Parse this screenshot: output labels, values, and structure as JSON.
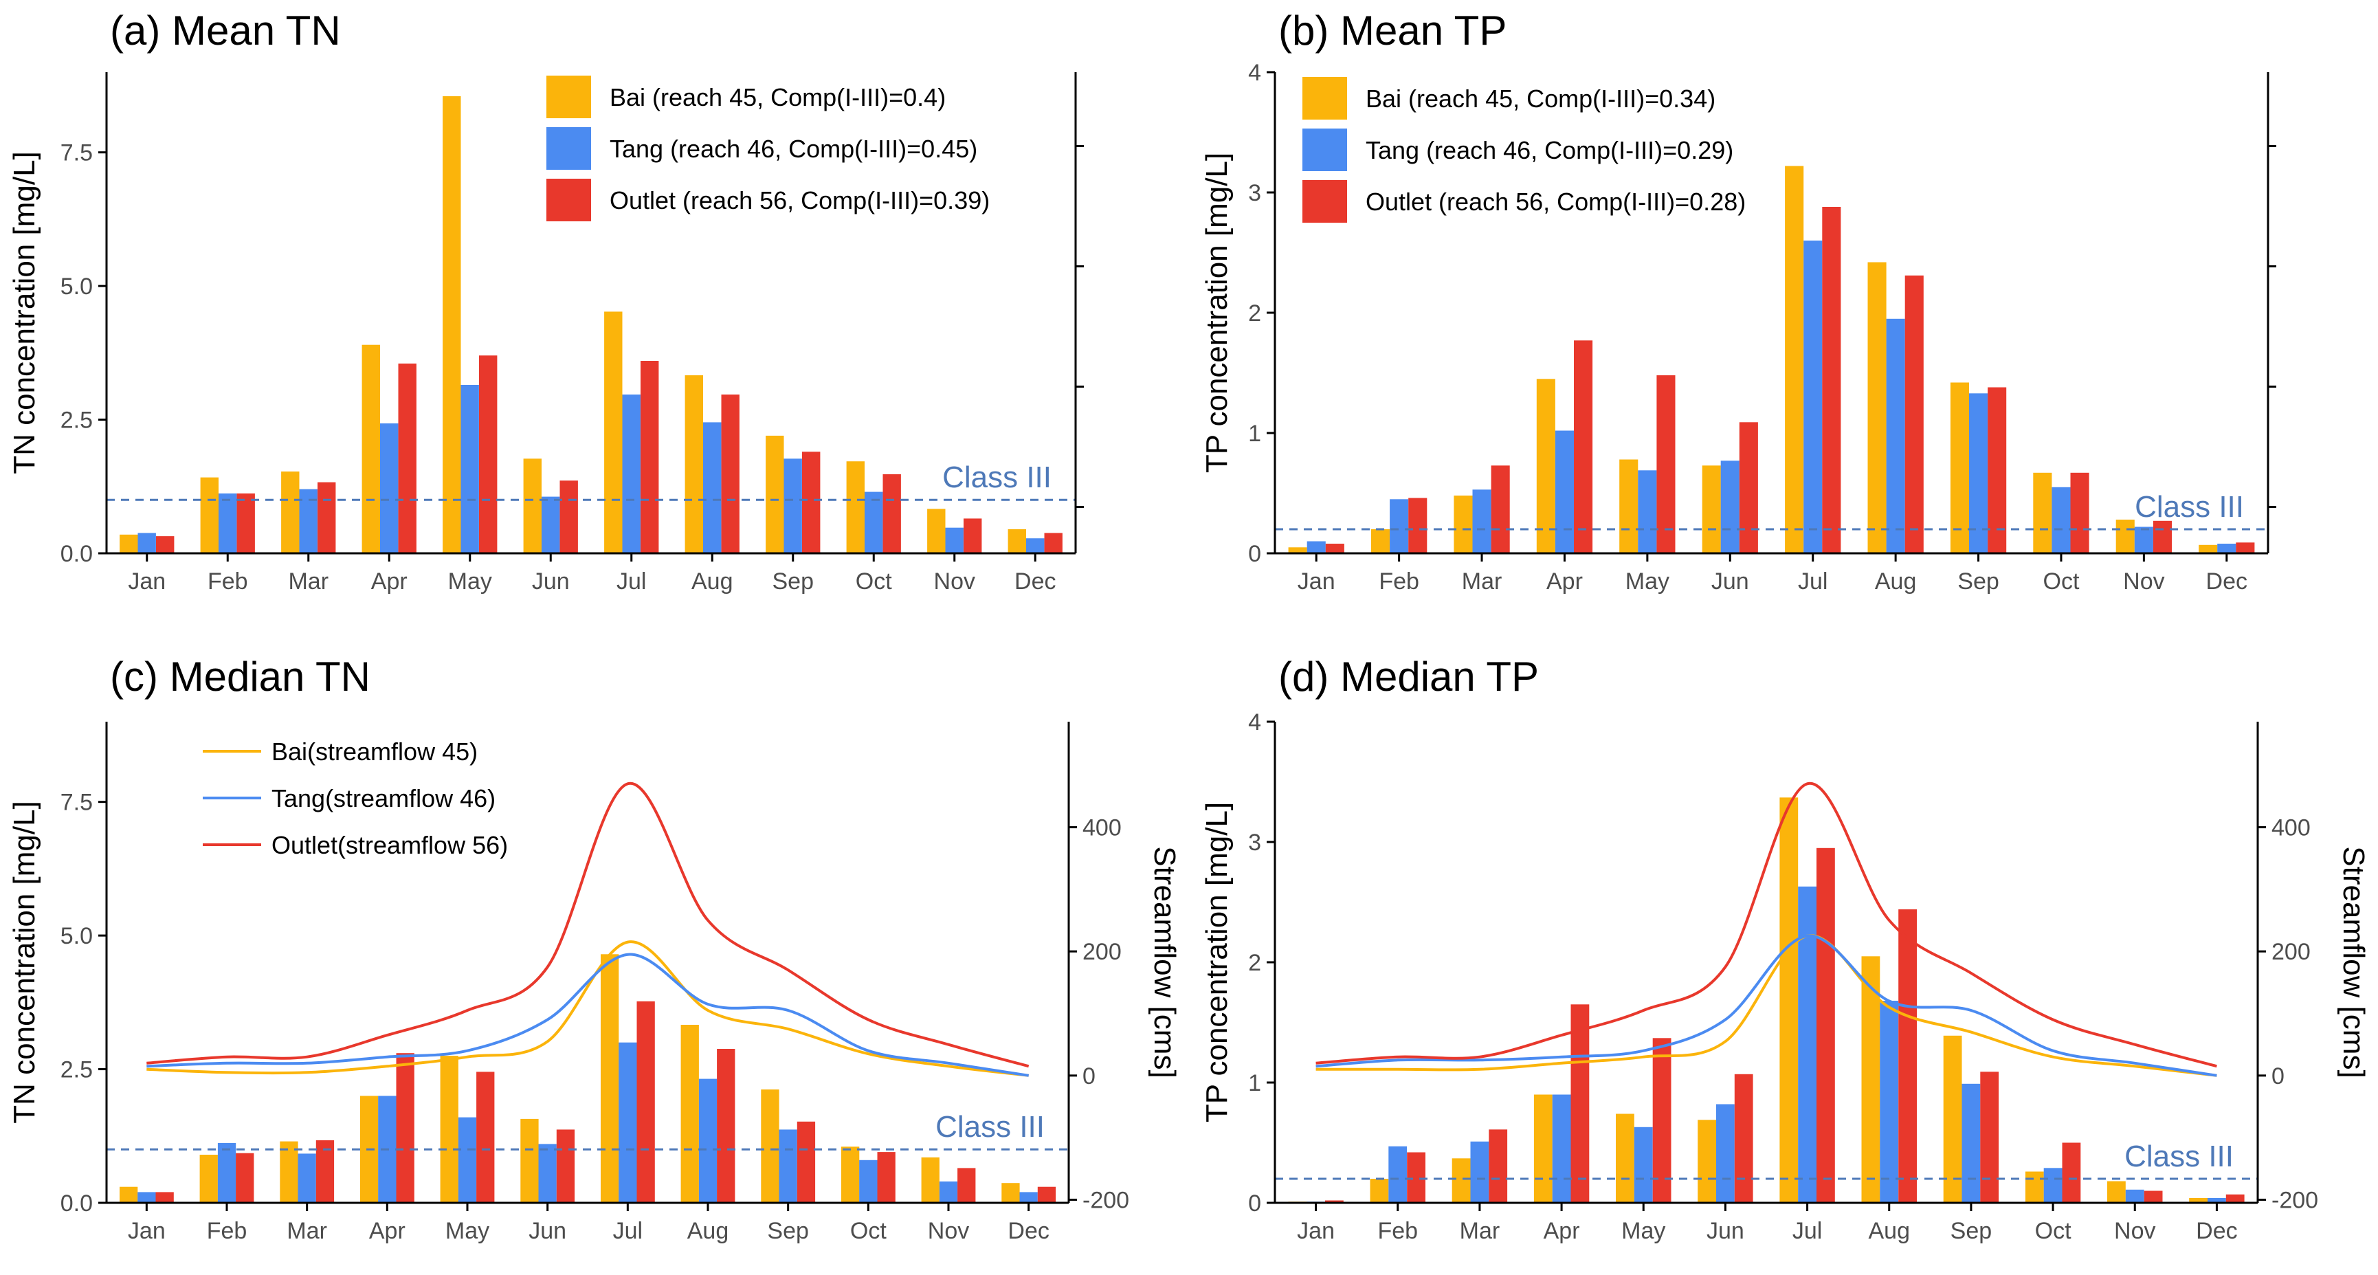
{
  "colors": {
    "bai": "#FBB40B",
    "tang": "#4B8BF1",
    "outlet": "#E8382C",
    "classline": "#4E79B8",
    "axis": "#000000",
    "tick_text": "#4d4d4d"
  },
  "months": [
    "Jan",
    "Feb",
    "Mar",
    "Apr",
    "May",
    "Jun",
    "Jul",
    "Aug",
    "Sep",
    "Oct",
    "Nov",
    "Dec"
  ],
  "chart_data": [
    {
      "id": "a",
      "type": "bar",
      "title": "(a) Mean TN",
      "ylabel": "TN concentration [mg/L]",
      "ylim": [
        0,
        9
      ],
      "yticks": [
        0,
        2.5,
        5,
        7.5
      ],
      "ytick_labels": [
        "0.0",
        "2.5",
        "5.0",
        "7.5"
      ],
      "class_line": {
        "value": 1.0,
        "label": "Class III"
      },
      "series": [
        {
          "name": "Bai (reach 45, Comp(I-III)=0.4)",
          "color": "#FBB40B",
          "values": [
            0.35,
            1.42,
            1.53,
            3.9,
            8.55,
            1.77,
            4.52,
            3.33,
            2.2,
            1.72,
            0.83,
            0.45
          ]
        },
        {
          "name": "Tang (reach 46, Comp(I-III)=0.45)",
          "color": "#4B8BF1",
          "values": [
            0.38,
            1.12,
            1.2,
            2.43,
            3.15,
            1.06,
            2.97,
            2.45,
            1.77,
            1.15,
            0.48,
            0.28
          ]
        },
        {
          "name": "Outlet (reach 56, Comp(I-III)=0.39)",
          "color": "#E8382C",
          "values": [
            0.32,
            1.12,
            1.33,
            3.55,
            3.7,
            1.36,
            3.6,
            2.97,
            1.9,
            1.48,
            0.65,
            0.38
          ]
        }
      ],
      "right_axis_ticks": 4
    },
    {
      "id": "b",
      "type": "bar",
      "title": "(b) Mean TP",
      "ylabel": "TP concentration [mg/L]",
      "ylim": [
        0,
        4
      ],
      "yticks": [
        0,
        1,
        2,
        3,
        4
      ],
      "ytick_labels": [
        "0",
        "1",
        "2",
        "3",
        "4"
      ],
      "class_line": {
        "value": 0.2,
        "label": "Class III"
      },
      "series": [
        {
          "name": "Bai (reach 45, Comp(I-III)=0.34)",
          "color": "#FBB40B",
          "values": [
            0.05,
            0.2,
            0.48,
            1.45,
            0.78,
            0.73,
            3.22,
            2.42,
            1.42,
            0.67,
            0.28,
            0.07
          ]
        },
        {
          "name": "Tang (reach 46, Comp(I-III)=0.29)",
          "color": "#4B8BF1",
          "values": [
            0.1,
            0.45,
            0.53,
            1.02,
            0.69,
            0.77,
            2.6,
            1.95,
            1.33,
            0.55,
            0.22,
            0.08
          ]
        },
        {
          "name": "Outlet (reach 56, Comp(I-III)=0.28)",
          "color": "#E8382C",
          "values": [
            0.08,
            0.46,
            0.73,
            1.77,
            1.48,
            1.09,
            2.88,
            2.31,
            1.38,
            0.67,
            0.27,
            0.09
          ]
        }
      ],
      "right_axis_ticks": 4
    },
    {
      "id": "c",
      "type": "bar",
      "title": "(c) Median TN",
      "ylabel": "TN concentration [mg/L]",
      "ylim": [
        0,
        9
      ],
      "yticks": [
        0,
        2.5,
        5,
        7.5
      ],
      "ytick_labels": [
        "0.0",
        "2.5",
        "5.0",
        "7.5"
      ],
      "class_line": {
        "value": 1.0,
        "label": "Class III"
      },
      "series": [
        {
          "name": "Bai",
          "color": "#FBB40B",
          "values": [
            0.3,
            0.9,
            1.15,
            2.0,
            2.75,
            1.57,
            4.65,
            3.33,
            2.12,
            1.05,
            0.85,
            0.37
          ]
        },
        {
          "name": "Tang",
          "color": "#4B8BF1",
          "values": [
            0.2,
            1.12,
            0.92,
            2.0,
            1.6,
            1.1,
            3.0,
            2.32,
            1.37,
            0.8,
            0.4,
            0.2
          ]
        },
        {
          "name": "Outlet",
          "color": "#E8382C",
          "values": [
            0.2,
            0.93,
            1.17,
            2.8,
            2.45,
            1.37,
            3.77,
            2.88,
            1.52,
            0.95,
            0.65,
            0.3
          ]
        }
      ],
      "right_axis": {
        "title": "Streamflow [cms]",
        "ylim": [
          -205,
          570
        ],
        "ticks": [
          -200,
          0,
          200,
          400
        ],
        "tick_labels": [
          "-200",
          "0",
          "200",
          "400"
        ]
      },
      "flow_series": [
        {
          "name": "Bai(streamflow 45)",
          "color": "#FBB40B",
          "values": [
            10,
            5,
            5,
            15,
            30,
            55,
            215,
            105,
            75,
            35,
            15,
            0
          ]
        },
        {
          "name": "Tang(streamflow 46)",
          "color": "#4B8BF1",
          "values": [
            15,
            20,
            20,
            30,
            40,
            90,
            195,
            115,
            105,
            40,
            20,
            0
          ]
        },
        {
          "name": "Outlet(streamflow 56)",
          "color": "#E8382C",
          "values": [
            20,
            30,
            30,
            65,
            105,
            175,
            470,
            250,
            170,
            90,
            50,
            15
          ]
        }
      ]
    },
    {
      "id": "d",
      "type": "bar",
      "title": "(d) Median TP",
      "ylabel": "TP concentration [mg/L]",
      "ylim": [
        0,
        4
      ],
      "yticks": [
        0,
        1,
        2,
        3,
        4
      ],
      "ytick_labels": [
        "0",
        "1",
        "2",
        "3",
        "4"
      ],
      "class_line": {
        "value": 0.2,
        "label": "Class III"
      },
      "series": [
        {
          "name": "Bai",
          "color": "#FBB40B",
          "values": [
            0.01,
            0.2,
            0.37,
            0.9,
            0.74,
            0.69,
            3.37,
            2.05,
            1.39,
            0.26,
            0.18,
            0.04
          ]
        },
        {
          "name": "Tang",
          "color": "#4B8BF1",
          "values": [
            0.01,
            0.47,
            0.51,
            0.9,
            0.63,
            0.82,
            2.63,
            1.68,
            0.99,
            0.29,
            0.11,
            0.04
          ]
        },
        {
          "name": "Outlet",
          "color": "#E8382C",
          "values": [
            0.02,
            0.42,
            0.61,
            1.65,
            1.37,
            1.07,
            2.95,
            2.44,
            1.09,
            0.5,
            0.1,
            0.07
          ]
        }
      ],
      "right_axis": {
        "title": "Streamflow [cms]",
        "ylim": [
          -205,
          570
        ],
        "ticks": [
          -200,
          0,
          200,
          400
        ],
        "tick_labels": [
          "-200",
          "0",
          "200",
          "400"
        ]
      },
      "flow_series": [
        {
          "name": "Bai",
          "color": "#FBB40B",
          "values": [
            10,
            10,
            10,
            20,
            30,
            55,
            225,
            110,
            70,
            30,
            15,
            0
          ]
        },
        {
          "name": "Tang",
          "color": "#4B8BF1",
          "values": [
            15,
            25,
            25,
            30,
            40,
            90,
            225,
            120,
            105,
            40,
            20,
            0
          ]
        },
        {
          "name": "Outlet",
          "color": "#E8382C",
          "values": [
            20,
            30,
            30,
            65,
            105,
            175,
            470,
            250,
            165,
            90,
            50,
            15
          ]
        }
      ]
    }
  ]
}
